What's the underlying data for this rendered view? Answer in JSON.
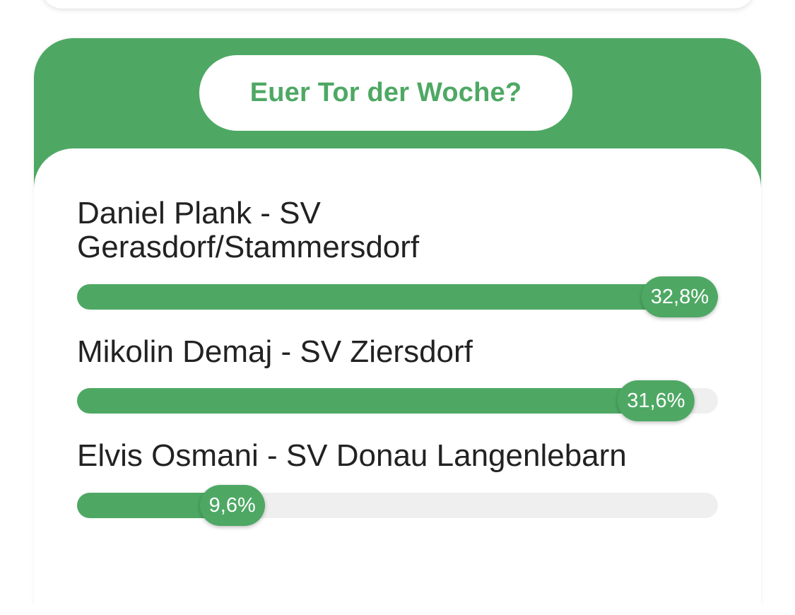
{
  "poll": {
    "title": "Euer Tor der Woche?",
    "accent_color": "#4ea864",
    "options": [
      {
        "label": "Daniel Plank - SV Gerasdorf/Stammersdorf",
        "percent_label": "32,8%",
        "fill_percent": 100
      },
      {
        "label": "Mikolin Demaj - SV Ziersdorf",
        "percent_label": "31,6%",
        "fill_percent": 96.3
      },
      {
        "label": "Elvis Osmani - SV Donau Langenlebarn",
        "percent_label": "9,6%",
        "fill_percent": 29.3
      }
    ]
  }
}
